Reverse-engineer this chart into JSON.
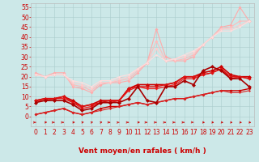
{
  "background_color": "#cce8e8",
  "grid_color": "#aacccc",
  "ylim": [
    0,
    57
  ],
  "ylim_display": [
    -5,
    57
  ],
  "xlim": [
    -0.5,
    23.5
  ],
  "yticks": [
    0,
    5,
    10,
    15,
    20,
    25,
    30,
    35,
    40,
    45,
    50,
    55
  ],
  "xticks": [
    0,
    1,
    2,
    3,
    4,
    5,
    6,
    7,
    8,
    9,
    10,
    11,
    12,
    13,
    14,
    15,
    16,
    17,
    18,
    19,
    20,
    21,
    22,
    23
  ],
  "series": [
    {
      "x": [
        0,
        1,
        2,
        3,
        4,
        5,
        6,
        7,
        8,
        9,
        10,
        11,
        12,
        13,
        14,
        15,
        16,
        17,
        18,
        19,
        20,
        21,
        22,
        23
      ],
      "y": [
        22,
        20,
        22,
        22,
        15,
        14,
        12,
        16,
        17,
        17,
        18,
        22,
        27,
        44,
        30,
        28,
        28,
        30,
        36,
        40,
        45,
        46,
        55,
        48
      ],
      "color": "#ffaaaa",
      "lw": 0.8,
      "ms": 2.0,
      "zorder": 2
    },
    {
      "x": [
        0,
        1,
        2,
        3,
        4,
        5,
        6,
        7,
        8,
        9,
        10,
        11,
        12,
        13,
        14,
        15,
        16,
        17,
        18,
        19,
        20,
        21,
        22,
        23
      ],
      "y": [
        21,
        20,
        21,
        21,
        16,
        15,
        13,
        17,
        17,
        18,
        19,
        23,
        27,
        38,
        28,
        28,
        29,
        31,
        36,
        40,
        44,
        45,
        48,
        48
      ],
      "color": "#ffbbbb",
      "lw": 0.8,
      "ms": 2.0,
      "zorder": 2
    },
    {
      "x": [
        0,
        1,
        2,
        3,
        4,
        5,
        6,
        7,
        8,
        9,
        10,
        11,
        12,
        13,
        14,
        15,
        16,
        17,
        18,
        19,
        20,
        21,
        22,
        23
      ],
      "y": [
        21,
        20,
        21,
        21,
        17,
        16,
        14,
        17,
        17,
        19,
        20,
        24,
        27,
        34,
        28,
        29,
        30,
        32,
        36,
        40,
        44,
        44,
        46,
        48
      ],
      "color": "#ffcccc",
      "lw": 0.8,
      "ms": 2.0,
      "zorder": 2
    },
    {
      "x": [
        0,
        1,
        2,
        3,
        4,
        5,
        6,
        7,
        8,
        9,
        10,
        11,
        12,
        13,
        14,
        15,
        16,
        17,
        18,
        19,
        20,
        21,
        22,
        23
      ],
      "y": [
        21,
        20,
        21,
        21,
        18,
        17,
        15,
        18,
        18,
        20,
        21,
        24,
        27,
        31,
        28,
        29,
        31,
        33,
        36,
        40,
        43,
        43,
        45,
        48
      ],
      "color": "#ffdddd",
      "lw": 0.8,
      "ms": 1.5,
      "zorder": 2
    },
    {
      "x": [
        0,
        1,
        2,
        3,
        4,
        5,
        6,
        7,
        8,
        9,
        10,
        11,
        12,
        13,
        14,
        15,
        16,
        17,
        18,
        19,
        20,
        21,
        22,
        23
      ],
      "y": [
        8,
        9,
        9,
        10,
        8,
        5,
        6,
        8,
        8,
        8,
        14,
        16,
        16,
        16,
        16,
        17,
        20,
        20,
        22,
        23,
        25,
        21,
        20,
        20
      ],
      "color": "#cc0000",
      "lw": 1.2,
      "ms": 2.5,
      "zorder": 4
    },
    {
      "x": [
        0,
        1,
        2,
        3,
        4,
        5,
        6,
        7,
        8,
        9,
        10,
        11,
        12,
        13,
        14,
        15,
        16,
        17,
        18,
        19,
        20,
        21,
        22,
        23
      ],
      "y": [
        8,
        9,
        9,
        10,
        7,
        5,
        6,
        7,
        8,
        8,
        14,
        15,
        15,
        15,
        16,
        17,
        20,
        20,
        21,
        22,
        24,
        20,
        20,
        19
      ],
      "color": "#dd1111",
      "lw": 1.0,
      "ms": 2.0,
      "zorder": 4
    },
    {
      "x": [
        0,
        1,
        2,
        3,
        4,
        5,
        6,
        7,
        8,
        9,
        10,
        11,
        12,
        13,
        14,
        15,
        16,
        17,
        18,
        19,
        20,
        21,
        22,
        23
      ],
      "y": [
        8,
        8,
        9,
        9,
        7,
        4,
        5,
        7,
        7,
        8,
        13,
        15,
        14,
        14,
        15,
        16,
        19,
        19,
        21,
        22,
        24,
        19,
        20,
        19
      ],
      "color": "#ee2222",
      "lw": 1.0,
      "ms": 2.0,
      "zorder": 3
    },
    {
      "x": [
        0,
        1,
        2,
        3,
        4,
        5,
        6,
        7,
        8,
        9,
        10,
        11,
        12,
        13,
        14,
        15,
        16,
        17,
        18,
        19,
        20,
        21,
        22,
        23
      ],
      "y": [
        7,
        8,
        8,
        8,
        6,
        3,
        4,
        7,
        7,
        7,
        9,
        15,
        8,
        7,
        15,
        15,
        18,
        16,
        23,
        25,
        23,
        19,
        19,
        15
      ],
      "color": "#aa0000",
      "lw": 1.2,
      "ms": 2.5,
      "zorder": 5
    },
    {
      "x": [
        0,
        1,
        2,
        3,
        4,
        5,
        6,
        7,
        8,
        9,
        10,
        11,
        12,
        13,
        14,
        15,
        16,
        17,
        18,
        19,
        20,
        21,
        22,
        23
      ],
      "y": [
        1,
        2,
        3,
        4,
        2,
        1,
        2,
        4,
        5,
        5,
        6,
        7,
        6,
        7,
        8,
        9,
        9,
        10,
        11,
        12,
        13,
        13,
        13,
        14
      ],
      "color": "#cc0000",
      "lw": 1.0,
      "ms": 2.0,
      "zorder": 3
    },
    {
      "x": [
        0,
        1,
        2,
        3,
        4,
        5,
        6,
        7,
        8,
        9,
        10,
        11,
        12,
        13,
        14,
        15,
        16,
        17,
        18,
        19,
        20,
        21,
        22,
        23
      ],
      "y": [
        1,
        2,
        3,
        4,
        2,
        1,
        2,
        3,
        4,
        5,
        6,
        7,
        6,
        7,
        8,
        9,
        9,
        10,
        11,
        12,
        13,
        12,
        12,
        13
      ],
      "color": "#dd2222",
      "lw": 0.8,
      "ms": 1.5,
      "zorder": 3
    }
  ],
  "arrow_angles_deg": [
    90,
    70,
    90,
    90,
    75,
    55,
    50,
    50,
    90,
    80,
    90,
    75,
    90,
    90,
    90,
    90,
    90,
    100,
    110,
    115,
    115,
    115,
    115,
    115
  ],
  "xlabel": "Vent moyen/en rafales ( km/h )",
  "xlabel_fontsize": 6.5,
  "tick_fontsize": 5.5
}
